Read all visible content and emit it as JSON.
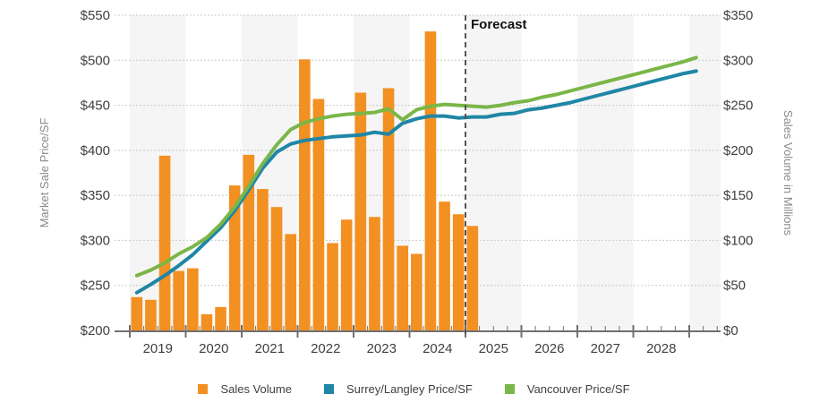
{
  "chart_data": {
    "type": "bar+line",
    "title": "",
    "annotation": "Forecast",
    "ylabel_left": "Market Sale Price/SF",
    "ylabel_right": "Sales Volume in Millions",
    "ylim_left": [
      200,
      550
    ],
    "ylim_right": [
      0,
      350
    ],
    "yticks_left": [
      "$200",
      "$250",
      "$300",
      "$350",
      "$400",
      "$450",
      "$500",
      "$550"
    ],
    "yticks_left_values": [
      200,
      250,
      300,
      350,
      400,
      450,
      500,
      550
    ],
    "yticks_right": [
      "$0",
      "$50",
      "$100",
      "$150",
      "$200",
      "$250",
      "$300",
      "$350"
    ],
    "yticks_right_values": [
      0,
      50,
      100,
      150,
      200,
      250,
      300,
      350
    ],
    "x_years": [
      "2019",
      "2020",
      "2021",
      "2022",
      "2023",
      "2024",
      "2025",
      "2026",
      "2027",
      "2028"
    ],
    "quarters_per_year": 4,
    "forecast_start_quarter_index": 24,
    "grid": true,
    "legend_position": "bottom",
    "series": [
      {
        "name": "Sales Volume",
        "kind": "bar",
        "axis": "right",
        "color": "#F39022",
        "values": [
          37,
          34,
          194,
          66,
          69,
          18,
          26,
          161,
          195,
          157,
          137,
          107,
          301,
          257,
          97,
          123,
          264,
          126,
          269,
          94,
          85,
          332,
          143,
          129,
          116
        ]
      },
      {
        "name": "Surrey/Langley Price/SF",
        "kind": "line",
        "axis": "left",
        "color": "#1F86A6",
        "values": [
          242,
          251,
          261,
          272,
          284,
          299,
          314,
          333,
          356,
          380,
          398,
          407,
          411,
          413,
          415,
          416,
          417,
          420,
          418,
          430,
          435,
          438,
          438,
          436,
          437,
          437,
          440,
          441,
          445,
          447,
          450,
          453,
          457,
          461,
          465,
          469,
          473,
          477,
          481,
          485,
          488
        ]
      },
      {
        "name": "Vancouver Price/SF",
        "kind": "line",
        "axis": "left",
        "color": "#7AB648",
        "values": [
          261,
          267,
          275,
          285,
          293,
          303,
          318,
          337,
          360,
          385,
          406,
          423,
          431,
          435,
          438,
          440,
          441,
          442,
          446,
          434,
          445,
          449,
          451,
          450,
          449,
          448,
          450,
          453,
          455,
          459,
          462,
          466,
          470,
          474,
          478,
          482,
          486,
          490,
          494,
          498,
          503
        ]
      }
    ]
  },
  "legend": {
    "items": [
      {
        "label": "Sales Volume",
        "color": "#F39022"
      },
      {
        "label": "Surrey/Langley Price/SF",
        "color": "#1F86A6"
      },
      {
        "label": "Vancouver Price/SF",
        "color": "#7AB648"
      }
    ]
  }
}
